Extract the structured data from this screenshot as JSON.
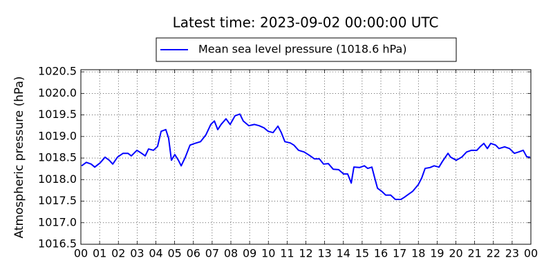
{
  "chart_data": {
    "type": "line",
    "title": "Latest time: 2023-09-02 00:00:00 UTC",
    "ylabel": "Atmospheric pressure (hPa)",
    "grid": true,
    "legend": "top",
    "xlim": [
      0,
      24
    ],
    "ylim": [
      1016.5,
      1020.55
    ],
    "xticks": [
      {
        "value": 0,
        "label": "00"
      },
      {
        "value": 1,
        "label": "01"
      },
      {
        "value": 2,
        "label": "02"
      },
      {
        "value": 3,
        "label": "03"
      },
      {
        "value": 4,
        "label": "04"
      },
      {
        "value": 5,
        "label": "05"
      },
      {
        "value": 6,
        "label": "06"
      },
      {
        "value": 7,
        "label": "07"
      },
      {
        "value": 8,
        "label": "08"
      },
      {
        "value": 9,
        "label": "09"
      },
      {
        "value": 10,
        "label": "10"
      },
      {
        "value": 11,
        "label": "11"
      },
      {
        "value": 12,
        "label": "12"
      },
      {
        "value": 13,
        "label": "13"
      },
      {
        "value": 14,
        "label": "14"
      },
      {
        "value": 15,
        "label": "15"
      },
      {
        "value": 16,
        "label": "16"
      },
      {
        "value": 17,
        "label": "17"
      },
      {
        "value": 18,
        "label": "18"
      },
      {
        "value": 19,
        "label": "19"
      },
      {
        "value": 20,
        "label": "20"
      },
      {
        "value": 21,
        "label": "21"
      },
      {
        "value": 22,
        "label": "22"
      },
      {
        "value": 23,
        "label": "23"
      },
      {
        "value": 24,
        "label": "00"
      }
    ],
    "yticks": [
      1016.5,
      {
        "value": 1017,
        "label": "1017.0"
      },
      1017.5,
      {
        "value": 1018,
        "label": "1018.0"
      },
      1018.5,
      {
        "value": 1019,
        "label": "1019.0"
      },
      1019.5,
      {
        "value": 1020,
        "label": "1020.0"
      },
      1020.5
    ],
    "x": [
      0.04,
      0.29,
      0.55,
      0.74,
      1.03,
      1.29,
      1.51,
      1.7,
      1.95,
      2.25,
      2.51,
      2.69,
      2.99,
      3.24,
      3.43,
      3.61,
      3.87,
      4.09,
      4.28,
      4.53,
      4.68,
      4.83,
      5.01,
      5.2,
      5.35,
      5.57,
      5.82,
      6.08,
      6.38,
      6.67,
      6.93,
      7.12,
      7.3,
      7.48,
      7.74,
      7.96,
      8.22,
      8.48,
      8.66,
      8.96,
      9.25,
      9.51,
      9.77,
      9.99,
      10.25,
      10.51,
      10.69,
      10.88,
      11.17,
      11.36,
      11.61,
      11.91,
      12.2,
      12.46,
      12.72,
      12.94,
      13.2,
      13.46,
      13.75,
      14.01,
      14.23,
      14.42,
      14.56,
      14.86,
      15.12,
      15.3,
      15.52,
      15.67,
      15.82,
      16.04,
      16.26,
      16.52,
      16.77,
      17.07,
      17.25,
      17.44,
      17.7,
      17.99,
      18.18,
      18.36,
      18.62,
      18.84,
      19.1,
      19.28,
      19.58,
      19.72,
      20.02,
      20.31,
      20.57,
      20.83,
      21.12,
      21.31,
      21.49,
      21.68,
      21.86,
      22.12,
      22.3,
      22.6,
      22.86,
      23.12,
      23.34,
      23.59,
      23.78,
      23.96
    ],
    "series": [
      {
        "name": "Mean sea level pressure (1018.6 hPa)",
        "color": "#0000ff",
        "values": [
          1018.32,
          1018.4,
          1018.36,
          1018.29,
          1018.39,
          1018.52,
          1018.45,
          1018.36,
          1018.52,
          1018.61,
          1018.61,
          1018.55,
          1018.68,
          1018.61,
          1018.55,
          1018.71,
          1018.68,
          1018.77,
          1019.12,
          1019.16,
          1018.96,
          1018.45,
          1018.58,
          1018.45,
          1018.32,
          1018.52,
          1018.8,
          1018.84,
          1018.88,
          1019.04,
          1019.28,
          1019.36,
          1019.16,
          1019.28,
          1019.41,
          1019.28,
          1019.48,
          1019.52,
          1019.36,
          1019.25,
          1019.28,
          1019.25,
          1019.2,
          1019.12,
          1019.09,
          1019.24,
          1019.09,
          1018.88,
          1018.85,
          1018.8,
          1018.68,
          1018.64,
          1018.56,
          1018.48,
          1018.48,
          1018.36,
          1018.37,
          1018.24,
          1018.23,
          1018.13,
          1018.13,
          1017.92,
          1018.29,
          1018.28,
          1018.32,
          1018.26,
          1018.29,
          1018.04,
          1017.8,
          1017.73,
          1017.64,
          1017.64,
          1017.54,
          1017.54,
          1017.59,
          1017.65,
          1017.73,
          1017.88,
          1018.04,
          1018.26,
          1018.28,
          1018.32,
          1018.29,
          1018.42,
          1018.61,
          1018.52,
          1018.45,
          1018.52,
          1018.64,
          1018.68,
          1018.68,
          1018.77,
          1018.84,
          1018.72,
          1018.84,
          1018.8,
          1018.72,
          1018.76,
          1018.72,
          1018.61,
          1018.64,
          1018.68,
          1018.53,
          1018.52
        ]
      }
    ]
  }
}
